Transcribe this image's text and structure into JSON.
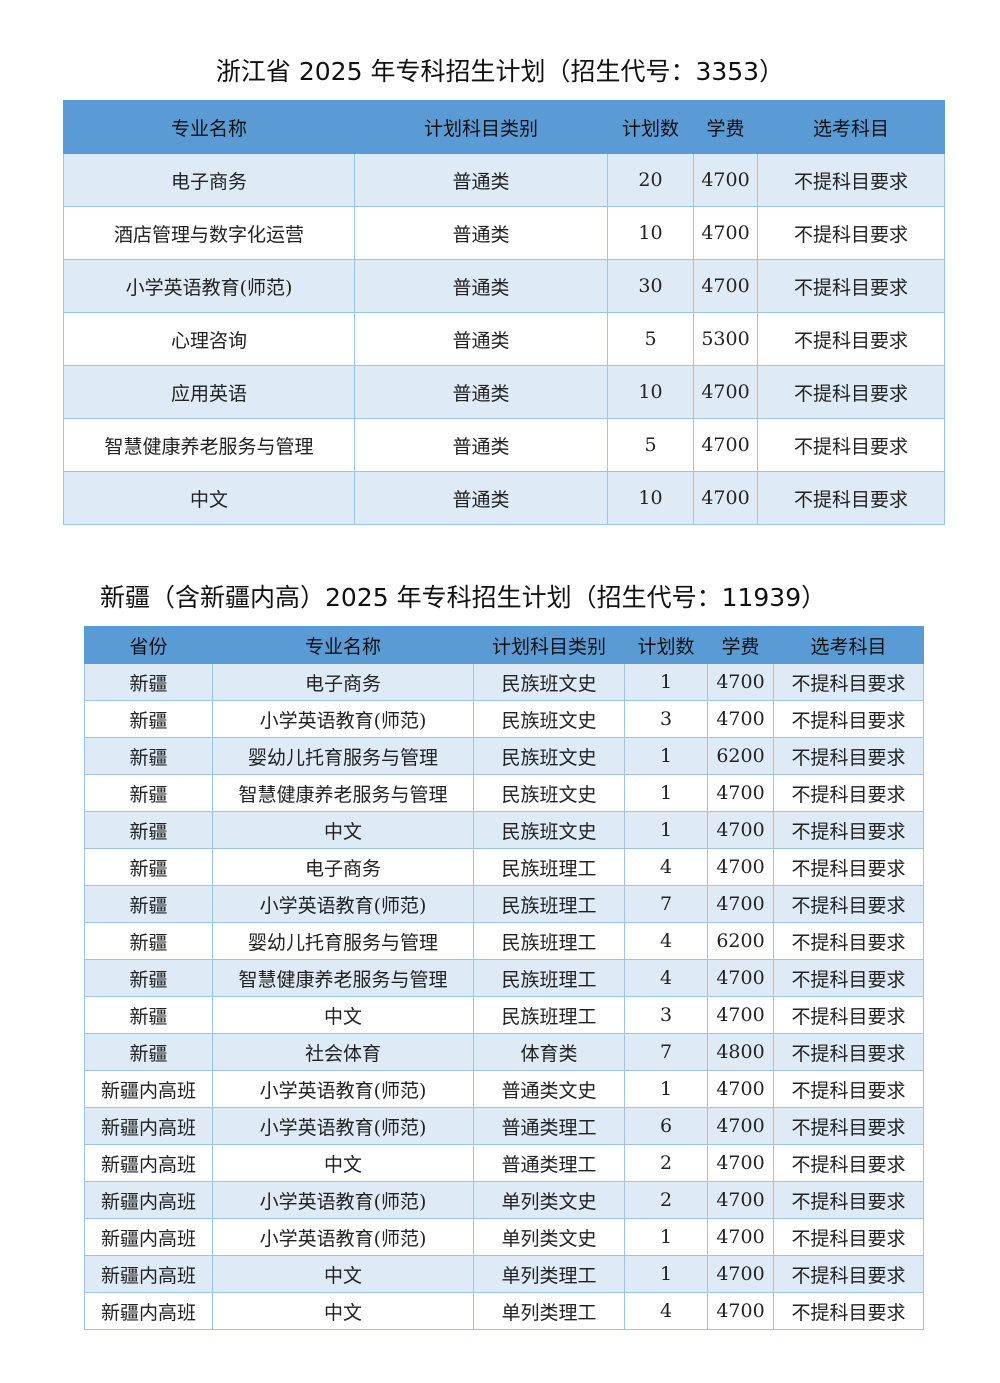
{
  "table1": {
    "title": "浙江省 2025 年专科招生计划（招生代号：3353）",
    "headers": [
      "专业名称",
      "计划科目类别",
      "计划数",
      "学费",
      "选考科目"
    ],
    "rows": [
      [
        "电子商务",
        "普通类",
        "20",
        "4700",
        "不提科目要求"
      ],
      [
        "酒店管理与数字化运营",
        "普通类",
        "10",
        "4700",
        "不提科目要求"
      ],
      [
        "小学英语教育(师范)",
        "普通类",
        "30",
        "4700",
        "不提科目要求"
      ],
      [
        "心理咨询",
        "普通类",
        "5",
        "5300",
        "不提科目要求"
      ],
      [
        "应用英语",
        "普通类",
        "10",
        "4700",
        "不提科目要求"
      ],
      [
        "智慧健康养老服务与管理",
        "普通类",
        "5",
        "4700",
        "不提科目要求"
      ],
      [
        "中文",
        "普通类",
        "10",
        "4700",
        "不提科目要求"
      ]
    ]
  },
  "table2": {
    "title": "新疆（含新疆内高）2025 年专科招生计划（招生代号：11939）",
    "headers": [
      "省份",
      "专业名称",
      "计划科目类别",
      "计划数",
      "学费",
      "选考科目"
    ],
    "rows": [
      [
        "新疆",
        "电子商务",
        "民族班文史",
        "1",
        "4700",
        "不提科目要求"
      ],
      [
        "新疆",
        "小学英语教育(师范)",
        "民族班文史",
        "3",
        "4700",
        "不提科目要求"
      ],
      [
        "新疆",
        "婴幼儿托育服务与管理",
        "民族班文史",
        "1",
        "6200",
        "不提科目要求"
      ],
      [
        "新疆",
        "智慧健康养老服务与管理",
        "民族班文史",
        "1",
        "4700",
        "不提科目要求"
      ],
      [
        "新疆",
        "中文",
        "民族班文史",
        "1",
        "4700",
        "不提科目要求"
      ],
      [
        "新疆",
        "电子商务",
        "民族班理工",
        "4",
        "4700",
        "不提科目要求"
      ],
      [
        "新疆",
        "小学英语教育(师范)",
        "民族班理工",
        "7",
        "4700",
        "不提科目要求"
      ],
      [
        "新疆",
        "婴幼儿托育服务与管理",
        "民族班理工",
        "4",
        "6200",
        "不提科目要求"
      ],
      [
        "新疆",
        "智慧健康养老服务与管理",
        "民族班理工",
        "4",
        "4700",
        "不提科目要求"
      ],
      [
        "新疆",
        "中文",
        "民族班理工",
        "3",
        "4700",
        "不提科目要求"
      ],
      [
        "新疆",
        "社会体育",
        "体育类",
        "7",
        "4800",
        "不提科目要求"
      ],
      [
        "新疆内高班",
        "小学英语教育(师范)",
        "普通类文史",
        "1",
        "4700",
        "不提科目要求"
      ],
      [
        "新疆内高班",
        "小学英语教育(师范)",
        "普通类理工",
        "6",
        "4700",
        "不提科目要求"
      ],
      [
        "新疆内高班",
        "中文",
        "普通类理工",
        "2",
        "4700",
        "不提科目要求"
      ],
      [
        "新疆内高班",
        "小学英语教育(师范)",
        "单列类文史",
        "2",
        "4700",
        "不提科目要求"
      ],
      [
        "新疆内高班",
        "小学英语教育(师范)",
        "单列类文史",
        "1",
        "4700",
        "不提科目要求"
      ],
      [
        "新疆内高班",
        "中文",
        "单列类理工",
        "1",
        "4700",
        "不提科目要求"
      ],
      [
        "新疆内高班",
        "中文",
        "单列类理工",
        "4",
        "4700",
        "不提科目要求"
      ]
    ]
  },
  "colors": {
    "header_bg": "#5b9bd5",
    "row_alt_bg": "#deebf7",
    "border": "#9dc3e6"
  }
}
